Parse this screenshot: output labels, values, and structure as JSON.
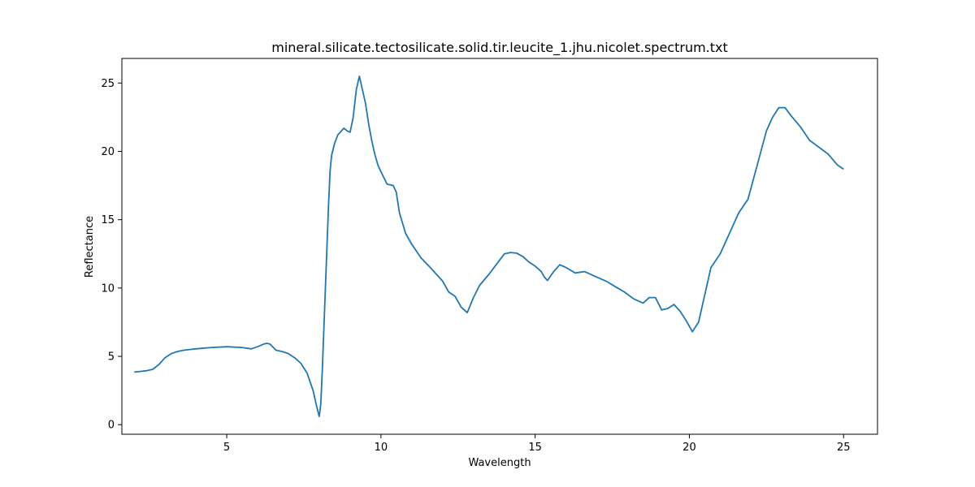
{
  "chart_data": {
    "type": "line",
    "title": "mineral.silicate.tectosilicate.solid.tir.leucite_1.jhu.nicolet.spectrum.txt",
    "xlabel": "Wavelength",
    "ylabel": "Reflectance",
    "xlim": [
      1.6,
      26.1
    ],
    "ylim": [
      -0.7,
      26.8
    ],
    "xticks": [
      5,
      10,
      15,
      20,
      25
    ],
    "yticks": [
      0,
      5,
      10,
      15,
      20,
      25
    ],
    "grid": false,
    "line_color": "#1f77b4",
    "series": [
      {
        "x": [
          2.0,
          2.2,
          2.4,
          2.6,
          2.8,
          3.0,
          3.2,
          3.4,
          3.6,
          3.8,
          4.0,
          4.5,
          5.0,
          5.5,
          5.8,
          6.0,
          6.2,
          6.3,
          6.4,
          6.6,
          6.8,
          7.0,
          7.2,
          7.4,
          7.6,
          7.8,
          7.9,
          8.0,
          8.05,
          8.1,
          8.2,
          8.3,
          8.35,
          8.4,
          8.5,
          8.6,
          8.8,
          8.9,
          9.0,
          9.1,
          9.2,
          9.3,
          9.4,
          9.5,
          9.6,
          9.7,
          9.8,
          9.9,
          10.0,
          10.2,
          10.4,
          10.5,
          10.6,
          10.8,
          11.0,
          11.3,
          11.6,
          12.0,
          12.2,
          12.4,
          12.5,
          12.6,
          12.8,
          13.0,
          13.2,
          13.5,
          13.8,
          14.0,
          14.2,
          14.4,
          14.6,
          14.8,
          15.0,
          15.2,
          15.3,
          15.4,
          15.6,
          15.8,
          16.0,
          16.3,
          16.6,
          17.0,
          17.3,
          17.6,
          17.9,
          18.2,
          18.5,
          18.7,
          18.9,
          19.1,
          19.3,
          19.5,
          19.7,
          19.9,
          20.1,
          20.3,
          20.5,
          20.7,
          21.0,
          21.3,
          21.6,
          21.9,
          22.2,
          22.5,
          22.7,
          22.9,
          23.1,
          23.3,
          23.6,
          23.9,
          24.2,
          24.5,
          24.8,
          25.0
        ],
        "y": [
          3.85,
          3.9,
          3.95,
          4.05,
          4.4,
          4.9,
          5.2,
          5.35,
          5.45,
          5.5,
          5.55,
          5.65,
          5.7,
          5.65,
          5.55,
          5.7,
          5.9,
          5.95,
          5.9,
          5.45,
          5.35,
          5.2,
          4.9,
          4.5,
          3.8,
          2.5,
          1.5,
          0.6,
          1.5,
          4.0,
          10.0,
          16.0,
          18.5,
          19.7,
          20.6,
          21.2,
          21.7,
          21.5,
          21.4,
          22.5,
          24.5,
          25.5,
          24.5,
          23.5,
          22.0,
          20.8,
          19.8,
          19.0,
          18.5,
          17.6,
          17.5,
          17.0,
          15.5,
          14.0,
          13.2,
          12.2,
          11.5,
          10.5,
          9.7,
          9.4,
          9.0,
          8.6,
          8.2,
          9.3,
          10.2,
          11.0,
          11.9,
          12.5,
          12.6,
          12.55,
          12.3,
          11.9,
          11.6,
          11.2,
          10.8,
          10.55,
          11.2,
          11.7,
          11.5,
          11.1,
          11.2,
          10.8,
          10.5,
          10.1,
          9.7,
          9.2,
          8.9,
          9.3,
          9.3,
          8.4,
          8.5,
          8.8,
          8.3,
          7.6,
          6.8,
          7.5,
          9.5,
          11.5,
          12.5,
          14.0,
          15.5,
          16.5,
          19.0,
          21.5,
          22.5,
          23.2,
          23.2,
          22.6,
          21.8,
          20.8,
          20.3,
          19.8,
          19.0,
          18.7
        ]
      }
    ]
  }
}
